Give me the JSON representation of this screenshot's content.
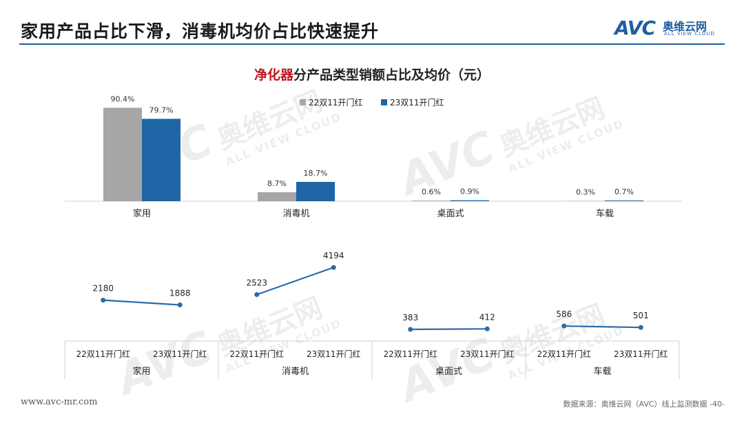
{
  "header": {
    "title": "家用产品占比下滑，消毒机均价占比快速提升",
    "logo_mark": "AVC",
    "logo_cn": "奥维云网",
    "logo_en": "ALL VIEW CLOUD"
  },
  "chart_title_highlight": "净化器",
  "chart_title_rest": "分产品类型销额占比及均价（元）",
  "watermark": {
    "mark": "AVC",
    "cn": "奥维云网",
    "en": "ALL VIEW CLOUD"
  },
  "colors": {
    "series_22": "#a6a6a6",
    "series_23": "#1f65a6",
    "line": "#2a6aa8",
    "highlight": "#c0151c"
  },
  "chart_data": [
    {
      "type": "bar",
      "title": "净化器分产品类型销额占比及均价（元）",
      "categories": [
        "家用",
        "消毒机",
        "桌面式",
        "车载"
      ],
      "series": [
        {
          "name": "22双11开门红",
          "values": [
            90.4,
            8.7,
            0.6,
            0.3
          ],
          "labels": [
            "90.4%",
            "8.7%",
            "0.6%",
            "0.3%"
          ]
        },
        {
          "name": "23双11开门红",
          "values": [
            79.7,
            18.7,
            0.9,
            0.7
          ],
          "labels": [
            "79.7%",
            "18.7%",
            "0.9%",
            "0.7%"
          ]
        }
      ],
      "ylim": [
        0,
        100
      ],
      "legend": "top-center",
      "grid": false
    },
    {
      "type": "line",
      "groups": [
        "家用",
        "消毒机",
        "桌面式",
        "车载"
      ],
      "x": [
        "22双11开门红",
        "23双11开门红"
      ],
      "series": [
        {
          "group": "家用",
          "values": [
            2180,
            1888
          ]
        },
        {
          "group": "消毒机",
          "values": [
            2523,
            4194
          ]
        },
        {
          "group": "桌面式",
          "values": [
            383,
            412
          ]
        },
        {
          "group": "车载",
          "values": [
            586,
            501
          ]
        }
      ],
      "ylim": [
        0,
        4200
      ],
      "grid": false
    }
  ],
  "footer": {
    "website": "www.avc-mr.com",
    "source": "数据来源：奥维云网（AVC）线上监测数据  -40-"
  }
}
